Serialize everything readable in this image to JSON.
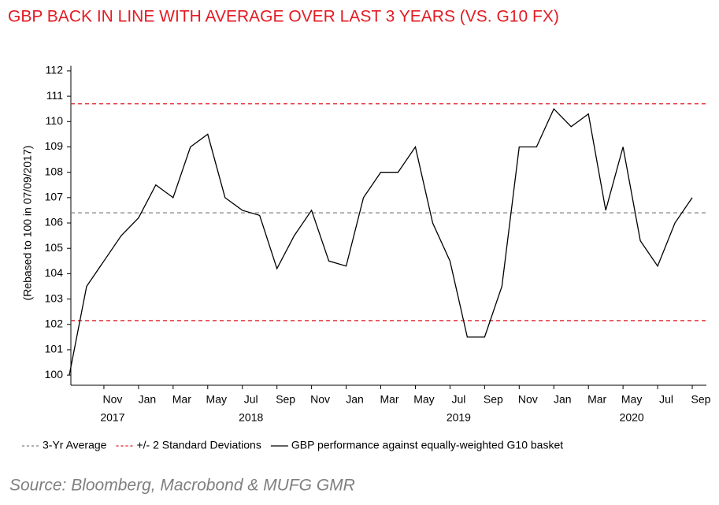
{
  "chart_data": {
    "type": "line",
    "title": "GBP BACK IN LINE WITH AVERAGE OVER LAST 3 YEARS (VS. G10 FX)",
    "y_label": "(Rebased to 100 in 07/09/2017)",
    "source": "Source: Bloomberg, Macrobond & MUFG GMR",
    "x": [
      "2017-09",
      "2017-10",
      "2017-11",
      "2017-12",
      "2018-01",
      "2018-02",
      "2018-03",
      "2018-04",
      "2018-05",
      "2018-06",
      "2018-07",
      "2018-08",
      "2018-09",
      "2018-10",
      "2018-11",
      "2018-12",
      "2019-01",
      "2019-02",
      "2019-03",
      "2019-04",
      "2019-05",
      "2019-06",
      "2019-07",
      "2019-08",
      "2019-09",
      "2019-10",
      "2019-11",
      "2019-12",
      "2020-01",
      "2020-02",
      "2020-03",
      "2020-04",
      "2020-05",
      "2020-06",
      "2020-07",
      "2020-08",
      "2020-09"
    ],
    "series": [
      {
        "name": "GBP performance against equally-weighted G10 basket",
        "color": "#000000",
        "values": [
          100,
          103.5,
          104.5,
          105.5,
          106.2,
          107.5,
          107.0,
          109.0,
          109.5,
          107.0,
          106.5,
          106.3,
          104.2,
          105.5,
          106.5,
          104.5,
          104.3,
          107.0,
          108.0,
          108.0,
          109.0,
          106.0,
          104.5,
          101.5,
          101.5,
          103.5,
          109.0,
          109.0,
          110.5,
          109.8,
          110.3,
          106.5,
          109.0,
          105.3,
          104.3,
          106.0,
          107.0
        ]
      }
    ],
    "reference_lines": [
      {
        "name": "3-Yr Average",
        "color": "#808080",
        "values": [
          106.4
        ]
      },
      {
        "name": "+/- 2 Standard Deviations",
        "color": "#e31b23",
        "values": [
          110.7,
          102.15
        ]
      }
    ],
    "xlim": [
      "2017-09",
      "2020-10"
    ],
    "xticks": [
      {
        "value": "2017-11",
        "label": "Nov"
      },
      {
        "value": "2018-01",
        "label": "Jan"
      },
      {
        "value": "2018-03",
        "label": "Mar"
      },
      {
        "value": "2018-05",
        "label": "May"
      },
      {
        "value": "2018-07",
        "label": "Jul"
      },
      {
        "value": "2018-09",
        "label": "Sep"
      },
      {
        "value": "2018-11",
        "label": "Nov"
      },
      {
        "value": "2019-01",
        "label": "Jan"
      },
      {
        "value": "2019-03",
        "label": "Mar"
      },
      {
        "value": "2019-05",
        "label": "May"
      },
      {
        "value": "2019-07",
        "label": "Jul"
      },
      {
        "value": "2019-09",
        "label": "Sep"
      },
      {
        "value": "2019-11",
        "label": "Nov"
      },
      {
        "value": "2020-01",
        "label": "Jan"
      },
      {
        "value": "2020-03",
        "label": "Mar"
      },
      {
        "value": "2020-05",
        "label": "May"
      },
      {
        "value": "2020-07",
        "label": "Jul"
      },
      {
        "value": "2020-09",
        "label": "Sep"
      }
    ],
    "year_labels": [
      {
        "value": "2017-11",
        "label": "2017"
      },
      {
        "value": "2018-07",
        "label": "2018"
      },
      {
        "value": "2019-07",
        "label": "2019"
      },
      {
        "value": "2020-05",
        "label": "2020"
      }
    ],
    "ylim": [
      99.6,
      112.2
    ],
    "yticks": [
      100,
      101,
      102,
      103,
      104,
      105,
      106,
      107,
      108,
      109,
      110,
      111,
      112
    ]
  }
}
